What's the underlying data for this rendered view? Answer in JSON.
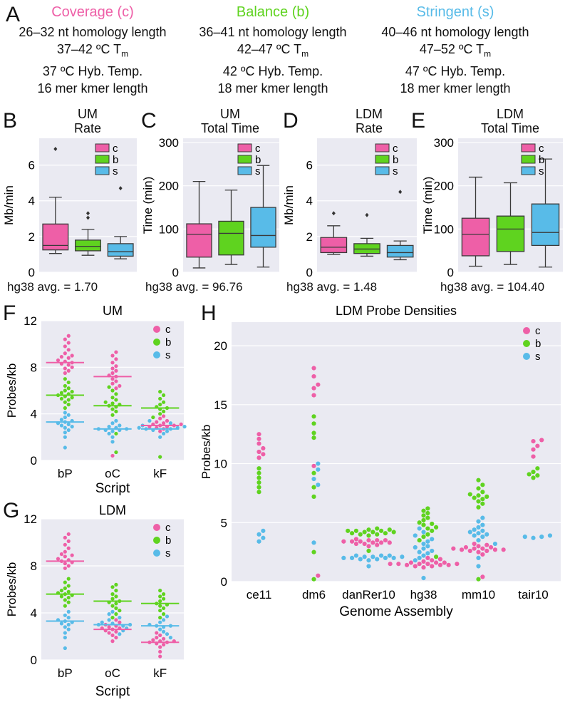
{
  "colors": {
    "coverage": "#ee5fa7",
    "balance": "#5fd31f",
    "stringent": "#58bbe8",
    "plot_bg": "#eaeaf2",
    "grid": "#ffffff",
    "box_line": "#3a3a3a"
  },
  "panel_letters": {
    "a": "A",
    "b": "B",
    "c": "C",
    "d": "D",
    "e": "E",
    "f": "F",
    "g": "G",
    "h": "H"
  },
  "header": {
    "coverage": {
      "title": "Coverage (c)",
      "homology": "26–32 nt homology length",
      "tm_prefix": "37–42 ºC T",
      "tm_sub": "m",
      "hyb": "37 ºC Hyb. Temp.",
      "kmer": "16 mer kmer length"
    },
    "balance": {
      "title": "Balance (b)",
      "homology": "36–41 nt homology length",
      "tm_prefix": "42–47 ºC T",
      "tm_sub": "m",
      "hyb": "42 ºC Hyb. Temp.",
      "kmer": "18 mer kmer length"
    },
    "stringent": {
      "title": "Stringent (s)",
      "homology": "40–46 nt homology length",
      "tm_prefix": "47–52 ºC T",
      "tm_sub": "m",
      "hyb": "47 ºC Hyb. Temp.",
      "kmer": "18 mer kmer length"
    }
  },
  "chart_data": [
    {
      "id": "B",
      "type": "box",
      "title": [
        "UM",
        "Rate"
      ],
      "ylabel": "Mb/min",
      "ylim": [
        0,
        7.5
      ],
      "yticks": [
        0,
        2,
        4,
        6
      ],
      "legend": [
        "c",
        "b",
        "s"
      ],
      "footer": "hg38 avg. = 1.70",
      "boxes": [
        {
          "name": "c",
          "whislo": 1.05,
          "q1": 1.25,
          "med": 1.5,
          "q3": 2.7,
          "whishi": 4.2,
          "fliers": [
            6.9
          ]
        },
        {
          "name": "b",
          "whislo": 0.95,
          "q1": 1.2,
          "med": 1.45,
          "q3": 1.8,
          "whishi": 2.4,
          "fliers": [
            3.05,
            3.3
          ]
        },
        {
          "name": "s",
          "whislo": 0.75,
          "q1": 0.9,
          "med": 1.15,
          "q3": 1.6,
          "whishi": 2.0,
          "fliers": [
            4.7
          ]
        }
      ]
    },
    {
      "id": "C",
      "type": "box",
      "title": [
        "UM",
        "Total Time"
      ],
      "ylabel": "Time (min)",
      "ylim": [
        0,
        310
      ],
      "yticks": [
        0,
        100,
        200,
        300
      ],
      "legend": [
        "c",
        "b",
        "s"
      ],
      "footer": "hg38 avg. = 96.76",
      "boxes": [
        {
          "name": "c",
          "whislo": 10,
          "q1": 35,
          "med": 88,
          "q3": 112,
          "whishi": 210,
          "fliers": []
        },
        {
          "name": "b",
          "whislo": 18,
          "q1": 40,
          "med": 90,
          "q3": 118,
          "whishi": 190,
          "fliers": []
        },
        {
          "name": "s",
          "whislo": 12,
          "q1": 58,
          "med": 85,
          "q3": 150,
          "whishi": 247,
          "fliers": []
        }
      ]
    },
    {
      "id": "D",
      "type": "box",
      "title": [
        "LDM",
        "Rate"
      ],
      "ylabel": "Mb/min",
      "ylim": [
        0,
        7.5
      ],
      "yticks": [
        0,
        2,
        4,
        6
      ],
      "legend": [
        "c",
        "b",
        "s"
      ],
      "footer": "hg38 avg. = 1.48",
      "boxes": [
        {
          "name": "c",
          "whislo": 1.0,
          "q1": 1.1,
          "med": 1.4,
          "q3": 1.95,
          "whishi": 2.6,
          "fliers": [
            3.3
          ]
        },
        {
          "name": "b",
          "whislo": 0.9,
          "q1": 1.05,
          "med": 1.3,
          "q3": 1.6,
          "whishi": 1.9,
          "fliers": [
            3.2
          ]
        },
        {
          "name": "s",
          "whislo": 0.7,
          "q1": 0.85,
          "med": 1.1,
          "q3": 1.5,
          "whishi": 1.75,
          "fliers": [
            4.5
          ]
        }
      ]
    },
    {
      "id": "E",
      "type": "box",
      "title": [
        "LDM",
        "Total Time"
      ],
      "ylabel": "Time (min)",
      "ylim": [
        0,
        310
      ],
      "yticks": [
        0,
        100,
        200,
        300
      ],
      "legend": [
        "c",
        "b",
        "s"
      ],
      "footer": "hg38 avg. = 104.40",
      "boxes": [
        {
          "name": "c",
          "whislo": 14,
          "q1": 38,
          "med": 88,
          "q3": 125,
          "whishi": 220,
          "fliers": []
        },
        {
          "name": "b",
          "whislo": 18,
          "q1": 48,
          "med": 100,
          "q3": 130,
          "whishi": 207,
          "fliers": []
        },
        {
          "name": "s",
          "whislo": 12,
          "q1": 62,
          "med": 92,
          "q3": 158,
          "whishi": 262,
          "fliers": []
        }
      ]
    },
    {
      "id": "F",
      "type": "swarm",
      "title": "UM",
      "ylabel": "Probes/kb",
      "xlabel": "Script",
      "ylim": [
        0,
        12
      ],
      "yticks": [
        0,
        4,
        8,
        12
      ],
      "categories": [
        "bP",
        "oC",
        "kF"
      ],
      "legend": [
        "c",
        "b",
        "s"
      ],
      "groups": [
        {
          "cat": "bP",
          "c": [
            7.7,
            7.9,
            8.0,
            8.2,
            8.4,
            8.5,
            8.6,
            8.8,
            9.0,
            9.2,
            9.5,
            9.8,
            10.1,
            10.4,
            10.7,
            7.5,
            8.3,
            8.9
          ],
          "b": [
            4.5,
            4.8,
            5.0,
            5.2,
            5.4,
            5.6,
            5.7,
            5.8,
            6.0,
            6.2,
            6.4,
            6.7,
            7.0,
            5.5,
            5.9,
            5.3
          ],
          "s": [
            1.1,
            2.0,
            2.4,
            2.6,
            2.8,
            3.0,
            3.2,
            3.3,
            3.4,
            3.5,
            3.7,
            3.9,
            4.1,
            3.1,
            2.9
          ],
          "mean_c": 8.4,
          "mean_b": 5.6,
          "mean_s": 3.3
        },
        {
          "cat": "oC",
          "c": [
            0.4,
            6.2,
            6.6,
            6.8,
            7.0,
            7.2,
            7.3,
            7.5,
            7.7,
            7.9,
            8.1,
            8.4,
            8.7,
            9.0,
            9.3,
            6.4
          ],
          "b": [
            0.7,
            2.3,
            3.9,
            4.2,
            4.4,
            4.6,
            4.8,
            5.0,
            5.2,
            5.4,
            5.7,
            6.0,
            6.3,
            4.7,
            4.9
          ],
          "s": [
            1.6,
            2.0,
            2.3,
            2.5,
            2.6,
            2.7,
            2.8,
            2.9,
            3.0,
            3.2,
            3.4,
            2.7,
            2.6
          ],
          "mean_c": 7.2,
          "mean_b": 4.7,
          "mean_s": 2.7
        },
        {
          "cat": "kF",
          "c": [
            2.5,
            2.7,
            2.8,
            2.9,
            3.0,
            3.0,
            3.1,
            3.2,
            3.3,
            3.4,
            3.6,
            3.8,
            2.9,
            3.1
          ],
          "b": [
            0.3,
            3.7,
            4.0,
            4.2,
            4.4,
            4.6,
            4.8,
            5.0,
            5.3,
            5.6,
            5.9,
            4.5
          ],
          "s": [
            2.0,
            2.3,
            2.5,
            2.6,
            2.7,
            2.8,
            2.9,
            3.0,
            3.2,
            3.4,
            2.7,
            2.8
          ],
          "mean_c": 3.0,
          "mean_b": 4.5,
          "mean_s": 2.7
        }
      ]
    },
    {
      "id": "G",
      "type": "swarm",
      "title": "LDM",
      "ylabel": "Probes/kb",
      "xlabel": "Script",
      "ylim": [
        0,
        12
      ],
      "yticks": [
        0,
        4,
        8,
        12
      ],
      "categories": [
        "bP",
        "oC",
        "kF"
      ],
      "legend": [
        "c",
        "b",
        "s"
      ],
      "groups": [
        {
          "cat": "bP",
          "c": [
            7.8,
            8.0,
            8.2,
            8.4,
            8.5,
            8.6,
            8.8,
            9.0,
            9.2,
            9.5,
            9.8,
            10.1,
            10.4,
            10.7,
            8.3,
            8.9
          ],
          "b": [
            4.6,
            4.9,
            5.1,
            5.3,
            5.5,
            5.6,
            5.7,
            5.9,
            6.1,
            6.3,
            6.6,
            6.9,
            5.4,
            5.8
          ],
          "s": [
            1.0,
            1.9,
            2.3,
            2.6,
            2.8,
            3.0,
            3.2,
            3.3,
            3.4,
            3.6,
            3.8,
            4.1,
            3.1
          ],
          "mean_c": 8.4,
          "mean_b": 5.6,
          "mean_s": 3.3
        },
        {
          "cat": "oC",
          "c": [
            1.6,
            1.9,
            2.1,
            2.3,
            2.4,
            2.6,
            2.7,
            2.8,
            2.9,
            3.0,
            3.2,
            3.4,
            2.5,
            2.7
          ],
          "b": [
            3.6,
            3.9,
            4.2,
            4.4,
            4.6,
            4.8,
            5.0,
            5.2,
            5.4,
            5.6,
            5.9,
            6.2,
            6.4,
            4.9
          ],
          "s": [
            2.2,
            2.5,
            2.7,
            2.9,
            3.0,
            3.1,
            3.2,
            3.4,
            3.6,
            3.9,
            4.1,
            3.0
          ],
          "mean_c": 2.6,
          "mean_b": 5.0,
          "mean_s": 3.0
        },
        {
          "cat": "kF",
          "c": [
            0.3,
            0.7,
            1.1,
            1.3,
            1.4,
            1.5,
            1.6,
            1.7,
            1.8,
            1.9,
            2.1,
            2.3,
            1.5,
            1.6
          ],
          "b": [
            3.6,
            3.9,
            4.2,
            4.4,
            4.6,
            4.8,
            5.0,
            5.2,
            5.4,
            5.6,
            5.9,
            4.7
          ],
          "s": [
            1.9,
            2.2,
            2.4,
            2.6,
            2.8,
            2.9,
            3.0,
            3.2,
            3.4,
            3.7,
            2.9
          ],
          "mean_c": 1.5,
          "mean_b": 4.8,
          "mean_s": 2.9
        }
      ]
    },
    {
      "id": "H",
      "type": "swarm",
      "title": "LDM Probe Densities",
      "ylabel": "Probes/kb",
      "xlabel": "Genome Assembly",
      "ylim": [
        0,
        22
      ],
      "yticks": [
        0,
        5,
        10,
        15,
        20
      ],
      "categories": [
        "ce11",
        "dm6",
        "danRer10",
        "hg38",
        "mm10",
        "tair10"
      ],
      "legend": [
        "c",
        "b",
        "s"
      ],
      "groups": [
        {
          "cat": "ce11",
          "c": [
            10.5,
            11.0,
            11.3,
            11.7,
            12.1,
            12.5,
            10.8
          ],
          "b": [
            7.6,
            8.0,
            8.4,
            8.8,
            9.2,
            9.6
          ],
          "s": [
            3.4,
            3.7,
            4.0,
            4.3
          ]
        },
        {
          "cat": "dm6",
          "c": [
            0.5,
            9.8,
            15.8,
            16.4,
            16.7,
            17.4,
            18.1
          ],
          "b": [
            0.2,
            2.5,
            7.2,
            8.0,
            9.2,
            12.2,
            12.6,
            13.4,
            14.0
          ],
          "s": [
            3.3,
            8.2,
            8.7,
            9.5,
            10.0
          ]
        },
        {
          "cat": "danRer10",
          "c": [
            3.0,
            3.1,
            3.2,
            3.3,
            3.3,
            3.4,
            3.5,
            3.5,
            3.6,
            3.4,
            3.2,
            3.3,
            3.4,
            3.5
          ],
          "b": [
            2.6,
            3.9,
            4.0,
            4.1,
            4.2,
            4.3,
            4.3,
            4.4,
            4.5,
            4.2,
            4.1,
            4.4,
            4.3,
            4.2,
            4.0
          ],
          "s": [
            1.3,
            1.8,
            1.9,
            2.0,
            2.0,
            2.1,
            2.1,
            2.2,
            2.2,
            2.0,
            2.1,
            1.9,
            2.0,
            2.2
          ]
        },
        {
          "cat": "hg38",
          "c": [
            1.2,
            1.3,
            1.4,
            1.4,
            1.5,
            1.5,
            1.5,
            1.6,
            1.6,
            1.7,
            1.8,
            1.9,
            2.0,
            1.4,
            1.5,
            1.6,
            1.3,
            1.5
          ],
          "b": [
            2.1,
            3.5,
            3.8,
            4.0,
            4.3,
            4.5,
            4.8,
            5.0,
            5.2,
            5.4,
            5.6,
            5.8,
            6.0,
            6.2,
            4.6,
            4.9
          ],
          "s": [
            0.3,
            1.8,
            2.0,
            2.2,
            2.4,
            2.6,
            2.8,
            3.0,
            3.2,
            3.4,
            3.6,
            3.9,
            4.2,
            4.5,
            2.5,
            2.9
          ]
        },
        {
          "cat": "mm10",
          "c": [
            0.4,
            2.3,
            2.5,
            2.6,
            2.7,
            2.8,
            2.8,
            2.9,
            3.0,
            3.1,
            3.2,
            2.7,
            2.6,
            2.9,
            2.8,
            2.7
          ],
          "b": [
            0.2,
            6.3,
            6.6,
            6.8,
            7.0,
            7.2,
            7.4,
            7.6,
            7.9,
            8.2,
            8.6,
            7.1,
            7.3
          ],
          "s": [
            1.3,
            2.0,
            3.2,
            3.5,
            3.8,
            4.0,
            4.2,
            4.4,
            4.6,
            4.8,
            5.1,
            5.4,
            4.3,
            3.9,
            4.1
          ]
        },
        {
          "cat": "tair10",
          "c": [
            10.6,
            11.2,
            11.5,
            11.9,
            12.0
          ],
          "b": [
            8.8,
            9.0,
            9.1,
            9.3,
            9.6
          ],
          "s": [
            3.7,
            3.8,
            3.9,
            3.8
          ]
        }
      ]
    }
  ]
}
